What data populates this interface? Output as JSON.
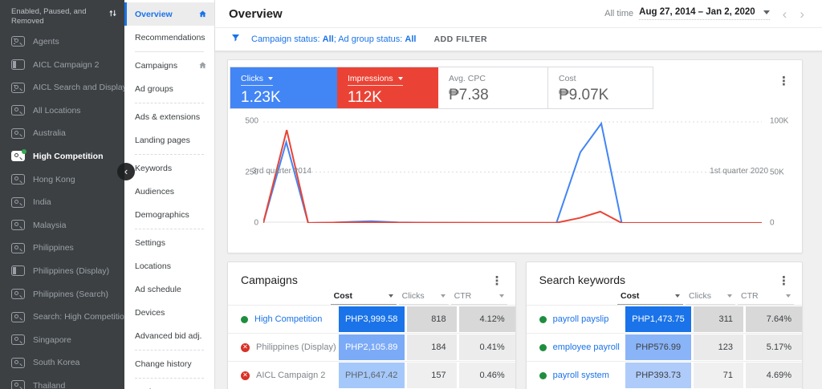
{
  "sidebar": {
    "header": "Enabled, Paused, and Removed",
    "items": [
      {
        "label": "Agents",
        "icon": "search-display"
      },
      {
        "label": "AICL Campaign 2",
        "icon": "display"
      },
      {
        "label": "AICL Search and Display",
        "icon": "search-display"
      },
      {
        "label": "All Locations",
        "icon": "search"
      },
      {
        "label": "Australia",
        "icon": "search"
      },
      {
        "label": "High Competition",
        "icon": "search",
        "selected": true,
        "badge": true
      },
      {
        "label": "Hong Kong",
        "icon": "search"
      },
      {
        "label": "India",
        "icon": "search"
      },
      {
        "label": "Malaysia",
        "icon": "search"
      },
      {
        "label": "Philippines",
        "icon": "search"
      },
      {
        "label": "Philippines (Display)",
        "icon": "display"
      },
      {
        "label": "Philippines (Search)",
        "icon": "search"
      },
      {
        "label": "Search: High Competition",
        "icon": "search"
      },
      {
        "label": "Singapore",
        "icon": "search"
      },
      {
        "label": "South Korea",
        "icon": "search"
      },
      {
        "label": "Thailand",
        "icon": "search"
      }
    ]
  },
  "nav": {
    "items": [
      {
        "label": "Overview",
        "selected": true,
        "home": true
      },
      {
        "label": "Recommendations",
        "divider_after": "solid"
      },
      {
        "label": "Campaigns",
        "home": true
      },
      {
        "label": "Ad groups",
        "divider_after": "dashed"
      },
      {
        "label": "Ads & extensions"
      },
      {
        "label": "Landing pages",
        "divider_after": "dashed"
      },
      {
        "label": "Keywords"
      },
      {
        "label": "Audiences"
      },
      {
        "label": "Demographics",
        "divider_after": "dashed"
      },
      {
        "label": "Settings"
      },
      {
        "label": "Locations"
      },
      {
        "label": "Ad schedule"
      },
      {
        "label": "Devices"
      },
      {
        "label": "Advanced bid adj.",
        "divider_after": "dashed"
      },
      {
        "label": "Change history",
        "divider_after": "dashed"
      },
      {
        "label": "Drafts &"
      }
    ]
  },
  "topbar": {
    "title": "Overview",
    "date_preset": "All time",
    "date_range": "Aug 27, 2014 – Jan 2, 2020"
  },
  "filterbar": {
    "segments": [
      {
        "text": "Campaign status: "
      },
      {
        "text": "All",
        "bold": true
      },
      {
        "text": "; Ad group status: "
      },
      {
        "text": "All",
        "bold": true
      }
    ],
    "add_filter": "ADD FILTER"
  },
  "scorecards": [
    {
      "label": "Clicks",
      "value": "1.23K",
      "bg": "#4285f4",
      "dropdown": true
    },
    {
      "label": "Impressions",
      "value": "112K",
      "bg": "#ea4335",
      "dropdown": true
    },
    {
      "label": "Avg. CPC",
      "value": "₱7.38",
      "bg": "#ffffff"
    },
    {
      "label": "Cost",
      "value": "₱9.07K",
      "bg": "#ffffff",
      "divider_left": true
    }
  ],
  "chart_data": {
    "type": "line",
    "x_axis": {
      "labels": [
        "3rd quarter 2014",
        "1st quarter 2020"
      ]
    },
    "y_left": {
      "name": "Clicks",
      "ticks": [
        "500",
        "250",
        "0"
      ],
      "range": [
        0,
        500
      ]
    },
    "y_right": {
      "name": "Impressions",
      "ticks": [
        "100K",
        "50K",
        "0"
      ],
      "range": [
        0,
        100000
      ]
    },
    "grid": "horizontal-dashed",
    "legend": "none",
    "series": [
      {
        "name": "Clicks",
        "axis": "left",
        "color": "#4285f4",
        "points": [
          [
            0,
            0
          ],
          [
            4.6,
            400
          ],
          [
            9,
            0
          ],
          [
            14,
            2
          ],
          [
            18,
            6
          ],
          [
            21.6,
            9
          ],
          [
            27,
            3
          ],
          [
            34,
            1
          ],
          [
            48,
            0
          ],
          [
            58.8,
            0
          ],
          [
            63.6,
            350
          ],
          [
            67.8,
            492
          ],
          [
            71.9,
            0
          ],
          [
            85,
            0
          ],
          [
            100,
            0
          ]
        ]
      },
      {
        "name": "Impressions",
        "axis": "right",
        "color": "#ea4335",
        "points": [
          [
            0,
            0
          ],
          [
            4.7,
            92000
          ],
          [
            9,
            0
          ],
          [
            15,
            500
          ],
          [
            21,
            600
          ],
          [
            30,
            300
          ],
          [
            45,
            200
          ],
          [
            58.8,
            200
          ],
          [
            63.5,
            5000
          ],
          [
            67.6,
            11200
          ],
          [
            71.9,
            0
          ],
          [
            85,
            0
          ],
          [
            100,
            0
          ]
        ]
      }
    ]
  },
  "tables": {
    "campaigns": {
      "title": "Campaigns",
      "columns": [
        {
          "label": "Cost",
          "active": true
        },
        {
          "label": "Clicks"
        },
        {
          "label": "CTR"
        }
      ],
      "rows": [
        {
          "status": "enabled",
          "name": "High Competition",
          "name_color": "#1a73e8",
          "cost": "PHP3,999.58",
          "cost_bg": "#1a73e8",
          "cost_color": "#ffffff",
          "clicks": "818",
          "clicks_bg": "#d8d8d8",
          "ctr": "4.12%",
          "ctr_bg": "#d8d8d8"
        },
        {
          "status": "removed",
          "name": "Philippines (Display)",
          "name_color": "#80868b",
          "cost": "PHP2,105.89",
          "cost_bg": "#7baaf7",
          "cost_color": "#ffffff",
          "clicks": "184",
          "clicks_bg": "#eaeaea",
          "ctr": "0.41%",
          "ctr_bg": "#ececec"
        },
        {
          "status": "removed",
          "name": "AICL Campaign 2",
          "name_color": "#80868b",
          "cost": "PHP1,647.42",
          "cost_bg": "#a5c8fa",
          "cost_color": "#5f6368",
          "clicks": "157",
          "clicks_bg": "#efefef",
          "ctr": "0.46%",
          "ctr_bg": "#efefef"
        }
      ]
    },
    "keywords": {
      "title": "Search keywords",
      "columns": [
        {
          "label": "Cost",
          "active": true
        },
        {
          "label": "Clicks"
        },
        {
          "label": "CTR"
        }
      ],
      "rows": [
        {
          "status": "enabled",
          "name": "payroll payslip",
          "name_color": "#1a73e8",
          "cost": "PHP1,473.75",
          "cost_bg": "#1a73e8",
          "cost_color": "#ffffff",
          "clicks": "311",
          "clicks_bg": "#d8d8d8",
          "ctr": "7.64%",
          "ctr_bg": "#d8d8d8"
        },
        {
          "status": "enabled",
          "name": "employee payroll",
          "name_color": "#1a73e8",
          "cost": "PHP576.99",
          "cost_bg": "#8ab4f8",
          "cost_color": "#3c4043",
          "clicks": "123",
          "clicks_bg": "#eaeaea",
          "ctr": "5.17%",
          "ctr_bg": "#eaeaea"
        },
        {
          "status": "enabled",
          "name": "payroll system",
          "name_color": "#1a73e8",
          "cost": "PHP393.73",
          "cost_bg": "#aecbfa",
          "cost_color": "#3c4043",
          "clicks": "71",
          "clicks_bg": "#f0f0f0",
          "ctr": "4.69%",
          "ctr_bg": "#ededed"
        }
      ]
    }
  },
  "colors": {
    "accent_blue": "#1a73e8",
    "chart_blue": "#4285f4",
    "chart_red": "#ea4335",
    "enabled_green": "#1e8e3e",
    "removed_red": "#d93025"
  }
}
